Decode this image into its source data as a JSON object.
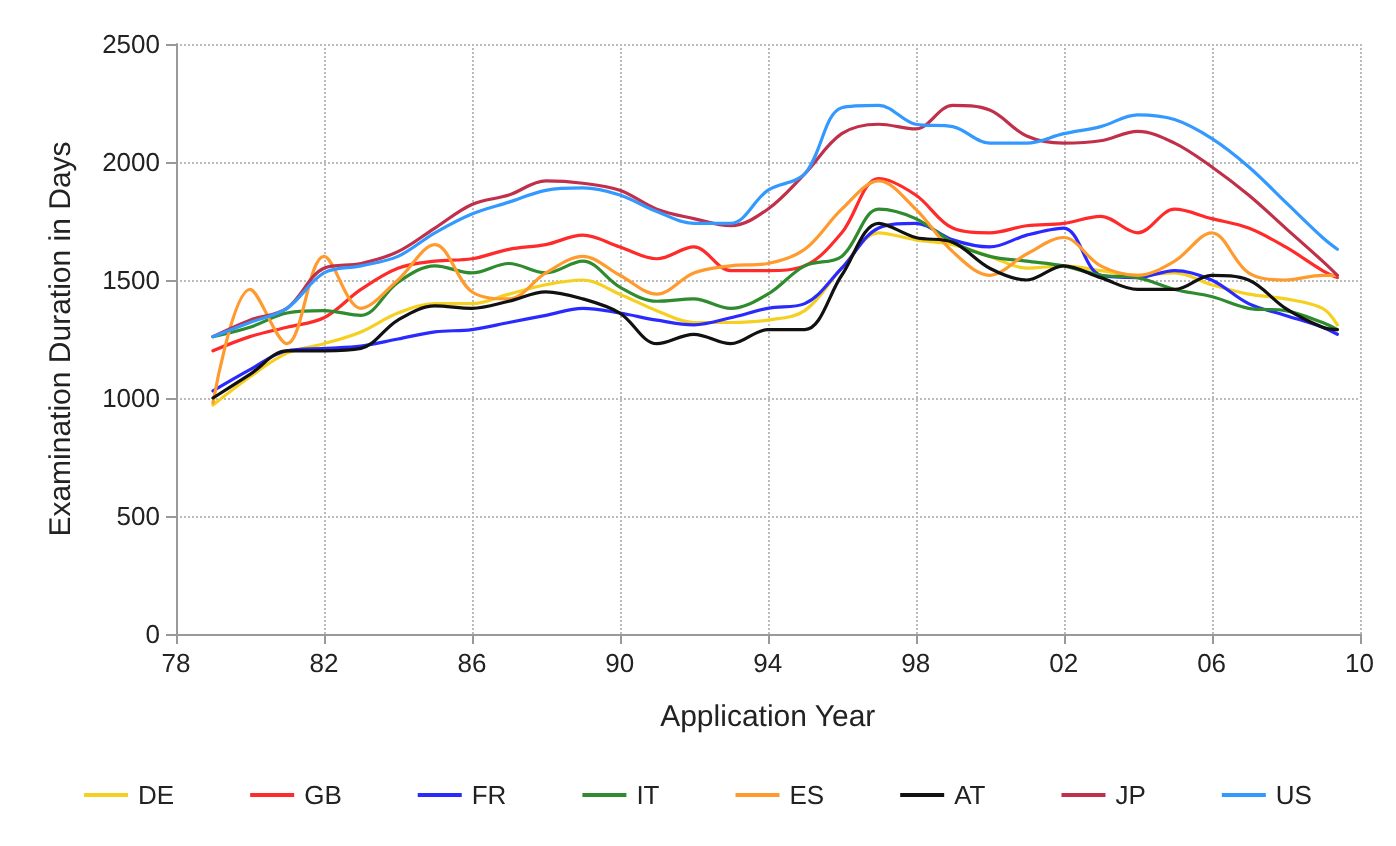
{
  "chart_data": {
    "type": "line",
    "xlabel": "Application Year",
    "ylabel": "Examination Duration in Days",
    "x": [
      1979,
      1980,
      1981,
      1982,
      1983,
      1984,
      1985,
      1986,
      1987,
      1988,
      1989,
      1990,
      1991,
      1992,
      1993,
      1994,
      1995,
      1996,
      1997,
      1998,
      1999,
      2000,
      2001,
      2002,
      2003,
      2004,
      2005,
      2006,
      2007,
      2008,
      2009,
      2009.4
    ],
    "xlim": [
      1978,
      2010
    ],
    "xticks": [
      {
        "value": 1978,
        "label": "78"
      },
      {
        "value": 1982,
        "label": "82"
      },
      {
        "value": 1986,
        "label": "86"
      },
      {
        "value": 1990,
        "label": "90"
      },
      {
        "value": 1994,
        "label": "94"
      },
      {
        "value": 1998,
        "label": "98"
      },
      {
        "value": 2002,
        "label": "02"
      },
      {
        "value": 2006,
        "label": "06"
      },
      {
        "value": 2010,
        "label": "10"
      }
    ],
    "ylim": [
      0,
      2500
    ],
    "yticks": [
      0,
      500,
      1000,
      1500,
      2000,
      2500
    ],
    "grid": true,
    "legend": "bottom",
    "marker": "none",
    "line_style": "solid",
    "series": [
      {
        "name": "DE",
        "color": "#f5d020",
        "values": [
          970,
          1090,
          1190,
          1230,
          1280,
          1360,
          1400,
          1400,
          1440,
          1480,
          1500,
          1440,
          1370,
          1320,
          1320,
          1330,
          1370,
          1550,
          1700,
          1670,
          1650,
          1600,
          1550,
          1560,
          1540,
          1520,
          1530,
          1480,
          1440,
          1420,
          1380,
          1310
        ]
      },
      {
        "name": "GB",
        "color": "#ff2a2a",
        "values": [
          1200,
          1260,
          1300,
          1340,
          1460,
          1550,
          1580,
          1590,
          1630,
          1650,
          1690,
          1640,
          1590,
          1640,
          1540,
          1540,
          1560,
          1700,
          1930,
          1860,
          1720,
          1700,
          1730,
          1740,
          1770,
          1700,
          1800,
          1760,
          1720,
          1640,
          1540,
          1510
        ]
      },
      {
        "name": "FR",
        "color": "#2a2aff",
        "values": [
          1030,
          1120,
          1200,
          1210,
          1220,
          1250,
          1280,
          1290,
          1320,
          1350,
          1380,
          1360,
          1330,
          1310,
          1340,
          1380,
          1400,
          1550,
          1720,
          1740,
          1670,
          1640,
          1690,
          1720,
          1520,
          1510,
          1540,
          1500,
          1400,
          1350,
          1300,
          1270
        ]
      },
      {
        "name": "IT",
        "color": "#2e8b2e",
        "values": [
          1260,
          1300,
          1360,
          1370,
          1350,
          1490,
          1560,
          1530,
          1570,
          1530,
          1580,
          1470,
          1410,
          1420,
          1380,
          1440,
          1560,
          1600,
          1800,
          1760,
          1660,
          1600,
          1580,
          1560,
          1520,
          1510,
          1460,
          1430,
          1380,
          1370,
          1320,
          1290
        ]
      },
      {
        "name": "ES",
        "color": "#ff9a2e",
        "values": [
          980,
          1460,
          1230,
          1600,
          1380,
          1500,
          1650,
          1450,
          1420,
          1530,
          1600,
          1520,
          1440,
          1530,
          1560,
          1570,
          1630,
          1800,
          1920,
          1800,
          1620,
          1520,
          1610,
          1680,
          1560,
          1520,
          1580,
          1700,
          1530,
          1500,
          1520,
          1520
        ]
      },
      {
        "name": "AT",
        "color": "#111111",
        "values": [
          1000,
          1100,
          1200,
          1200,
          1210,
          1330,
          1390,
          1380,
          1410,
          1450,
          1420,
          1360,
          1230,
          1270,
          1230,
          1290,
          1290,
          1520,
          1740,
          1680,
          1660,
          1550,
          1500,
          1560,
          1510,
          1460,
          1460,
          1520,
          1500,
          1380,
          1300,
          1290
        ]
      },
      {
        "name": "JP",
        "color": "#c0304a",
        "values": [
          1260,
          1330,
          1380,
          1550,
          1570,
          1620,
          1720,
          1820,
          1860,
          1920,
          1910,
          1880,
          1800,
          1760,
          1730,
          1800,
          1950,
          2120,
          2160,
          2140,
          2240,
          2220,
          2110,
          2080,
          2090,
          2130,
          2080,
          1980,
          1860,
          1720,
          1580,
          1520
        ]
      },
      {
        "name": "US",
        "color": "#3399ff",
        "values": [
          1260,
          1320,
          1380,
          1530,
          1560,
          1600,
          1700,
          1780,
          1830,
          1880,
          1890,
          1860,
          1790,
          1740,
          1740,
          1880,
          1950,
          2230,
          2240,
          2160,
          2150,
          2080,
          2080,
          2120,
          2150,
          2200,
          2180,
          2100,
          1980,
          1830,
          1680,
          1630
        ]
      }
    ]
  }
}
